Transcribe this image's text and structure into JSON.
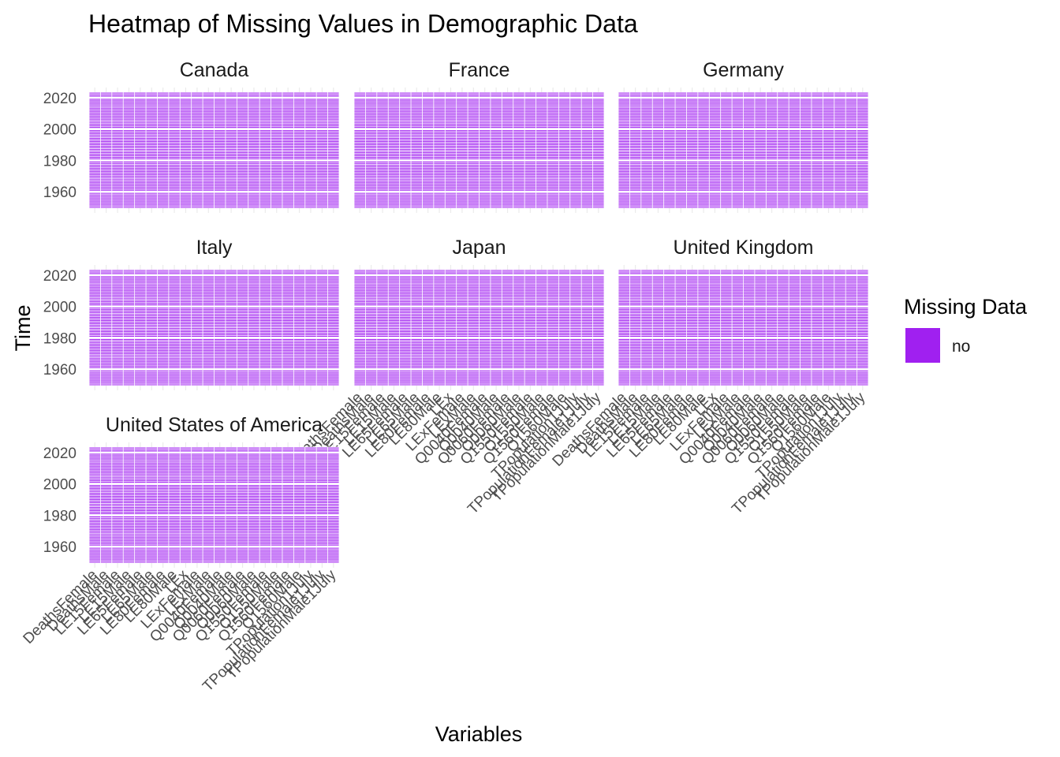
{
  "chart_data": {
    "type": "heatmap",
    "title": "Heatmap of Missing Values in Demographic Data",
    "xlabel": "Variables",
    "ylabel": "Time",
    "panels": [
      "Canada",
      "France",
      "Germany",
      "Italy",
      "Japan",
      "United Kingdom",
      "United States of America"
    ],
    "variables": [
      "DeathsFemale",
      "DeathsMale",
      "LE15Female",
      "LE15Male",
      "LE65Female",
      "LE65Male",
      "LE80Female",
      "LE80Male",
      "LEx",
      "LExFemale",
      "LExMale",
      "Q0040Female",
      "Q0040Male",
      "Q0060Female",
      "Q0060Male",
      "Q1550Female",
      "Q1550Male",
      "Q1560Female",
      "Q1560Male",
      "TPopulation1July",
      "TPopulationFemale1July",
      "TPopulationMale1July"
    ],
    "ylim": [
      1950,
      2023
    ],
    "yticks": [
      1960,
      1980,
      2000,
      2020
    ],
    "legend": {
      "title": "Missing Data",
      "position": "right",
      "entries": [
        {
          "label": "no",
          "color": "#a020f0"
        }
      ]
    },
    "fill_value": "no",
    "grid": true
  }
}
